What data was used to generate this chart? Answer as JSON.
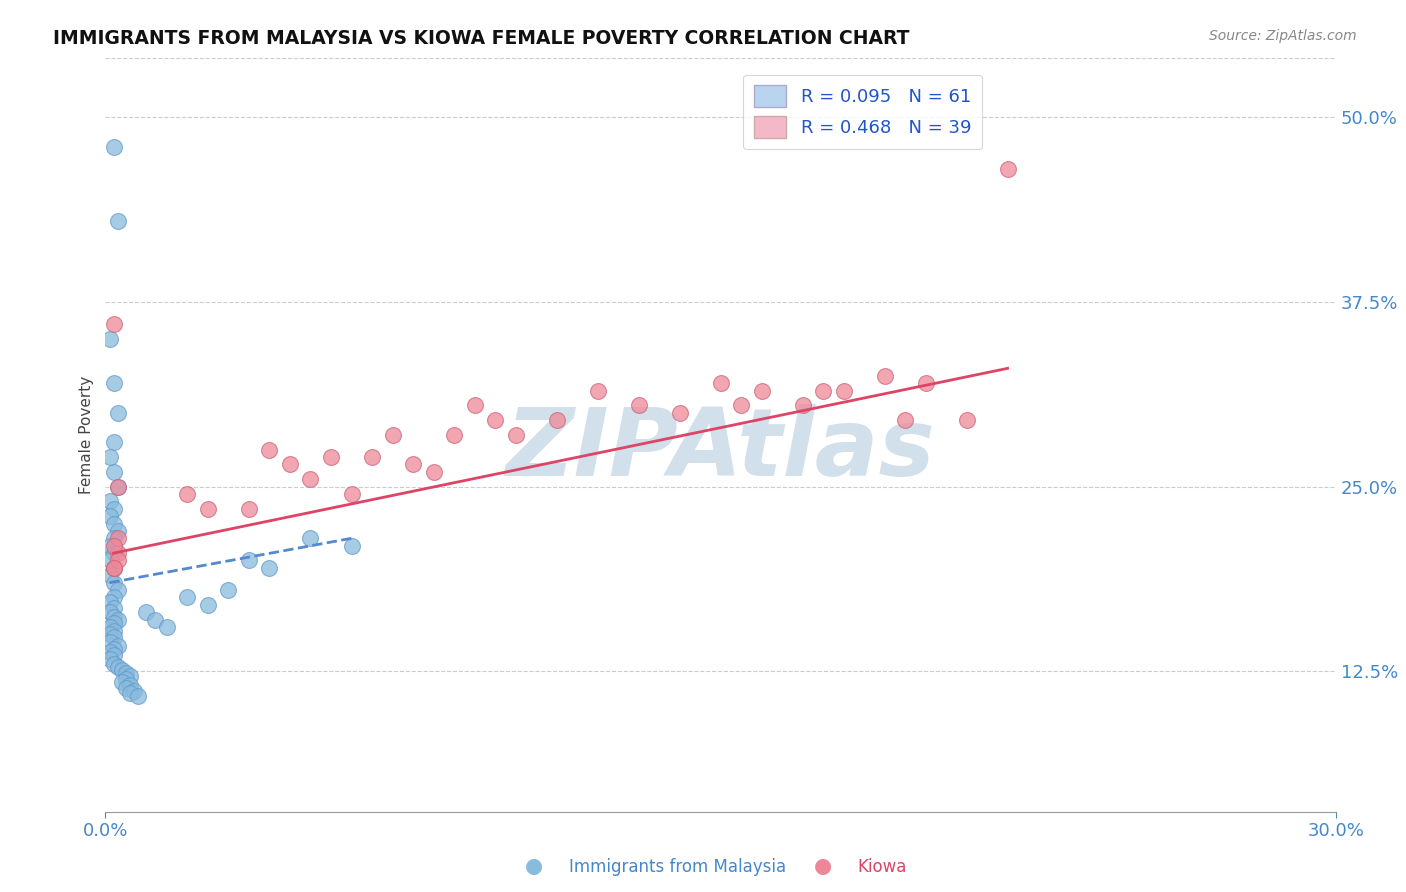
{
  "title": "IMMIGRANTS FROM MALAYSIA VS KIOWA FEMALE POVERTY CORRELATION CHART",
  "source_text": "Source: ZipAtlas.com",
  "ylabel": "Female Poverty",
  "xlim": [
    0.0,
    0.3
  ],
  "ylim": [
    0.03,
    0.54
  ],
  "yticks": [
    0.125,
    0.25,
    0.375,
    0.5
  ],
  "ytick_labels": [
    "12.5%",
    "25.0%",
    "37.5%",
    "50.0%"
  ],
  "xtick_labels": [
    "0.0%",
    "30.0%"
  ],
  "legend_entries": [
    {
      "label": "R = 0.095   N = 61",
      "facecolor": "#b8d4ee"
    },
    {
      "label": "R = 0.468   N = 39",
      "facecolor": "#f4b8c8"
    }
  ],
  "series1_color": "#88bbdd",
  "series2_color": "#ee8899",
  "trendline1_color": "#5588cc",
  "trendline2_color": "#dd4466",
  "grid_color": "#cccccc",
  "background_color": "#ffffff",
  "watermark": "ZIPAtlas",
  "watermark_color": "#ccdde8",
  "bottom_legend": [
    {
      "label": "Immigrants from Malaysia",
      "color": "#88bbdd"
    },
    {
      "label": "Kiowa",
      "color": "#ee8899"
    }
  ],
  "series1_x": [
    0.002,
    0.003,
    0.001,
    0.002,
    0.003,
    0.002,
    0.001,
    0.002,
    0.003,
    0.001,
    0.002,
    0.001,
    0.002,
    0.003,
    0.002,
    0.001,
    0.002,
    0.001,
    0.002,
    0.001,
    0.002,
    0.003,
    0.002,
    0.001,
    0.002,
    0.001,
    0.002,
    0.003,
    0.002,
    0.001,
    0.002,
    0.001,
    0.002,
    0.001,
    0.003,
    0.002,
    0.001,
    0.002,
    0.001,
    0.002,
    0.003,
    0.004,
    0.005,
    0.006,
    0.005,
    0.004,
    0.006,
    0.005,
    0.007,
    0.006,
    0.008,
    0.01,
    0.012,
    0.015,
    0.02,
    0.025,
    0.03,
    0.035,
    0.04,
    0.05,
    0.06
  ],
  "series1_y": [
    0.48,
    0.43,
    0.35,
    0.32,
    0.3,
    0.28,
    0.27,
    0.26,
    0.25,
    0.24,
    0.235,
    0.23,
    0.225,
    0.22,
    0.215,
    0.21,
    0.205,
    0.2,
    0.195,
    0.19,
    0.185,
    0.18,
    0.175,
    0.172,
    0.168,
    0.165,
    0.162,
    0.16,
    0.158,
    0.155,
    0.152,
    0.15,
    0.148,
    0.145,
    0.142,
    0.14,
    0.138,
    0.136,
    0.133,
    0.13,
    0.128,
    0.126,
    0.124,
    0.122,
    0.12,
    0.118,
    0.116,
    0.114,
    0.112,
    0.11,
    0.108,
    0.165,
    0.16,
    0.155,
    0.175,
    0.17,
    0.18,
    0.2,
    0.195,
    0.215,
    0.21
  ],
  "series2_x": [
    0.002,
    0.003,
    0.002,
    0.003,
    0.002,
    0.003,
    0.002,
    0.003,
    0.02,
    0.025,
    0.035,
    0.04,
    0.045,
    0.05,
    0.055,
    0.06,
    0.065,
    0.07,
    0.075,
    0.08,
    0.085,
    0.09,
    0.095,
    0.1,
    0.11,
    0.12,
    0.13,
    0.14,
    0.15,
    0.155,
    0.16,
    0.17,
    0.175,
    0.18,
    0.19,
    0.195,
    0.2,
    0.21,
    0.22
  ],
  "series2_y": [
    0.195,
    0.205,
    0.36,
    0.215,
    0.21,
    0.2,
    0.195,
    0.25,
    0.245,
    0.235,
    0.235,
    0.275,
    0.265,
    0.255,
    0.27,
    0.245,
    0.27,
    0.285,
    0.265,
    0.26,
    0.285,
    0.305,
    0.295,
    0.285,
    0.295,
    0.315,
    0.305,
    0.3,
    0.32,
    0.305,
    0.315,
    0.305,
    0.315,
    0.315,
    0.325,
    0.295,
    0.32,
    0.295,
    0.465
  ],
  "trendline1_x": [
    0.001,
    0.06
  ],
  "trendline1_y": [
    0.185,
    0.215
  ],
  "trendline2_x": [
    0.002,
    0.22
  ],
  "trendline2_y": [
    0.205,
    0.33
  ]
}
